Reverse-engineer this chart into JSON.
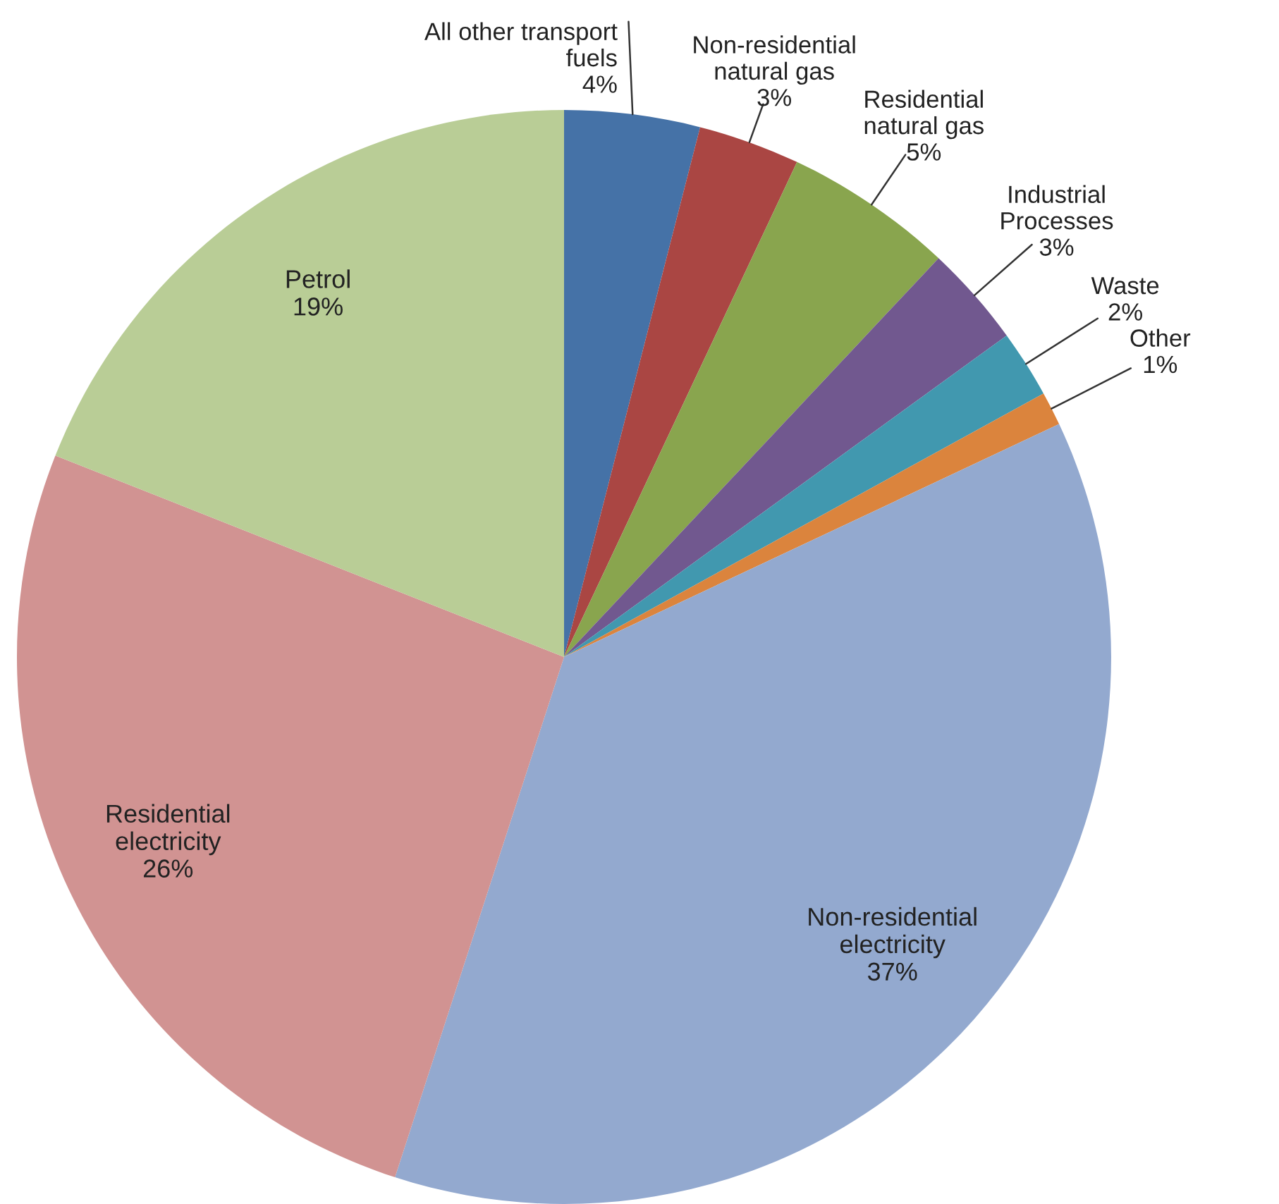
{
  "chart_data": {
    "type": "pie",
    "categories": [
      "All other transport\nfuels",
      "Non-residential\nnatural gas",
      "Residential\nnatural gas",
      "Industrial\nProcesses",
      "Waste",
      "Other",
      "Non-residential\nelectricity",
      "Residential\nelectricity",
      "Petrol"
    ],
    "values": [
      4,
      3,
      5,
      3,
      2,
      1,
      37,
      26,
      19
    ],
    "colors": [
      "#4572a7",
      "#aa4643",
      "#89a54e",
      "#71588f",
      "#4198af",
      "#db843d",
      "#93a9cf",
      "#d19392",
      "#b9cd96"
    ],
    "value_labels": [
      "4%",
      "3%",
      "5%",
      "3%",
      "2%",
      "1%",
      "37%",
      "26%",
      "19%"
    ]
  }
}
